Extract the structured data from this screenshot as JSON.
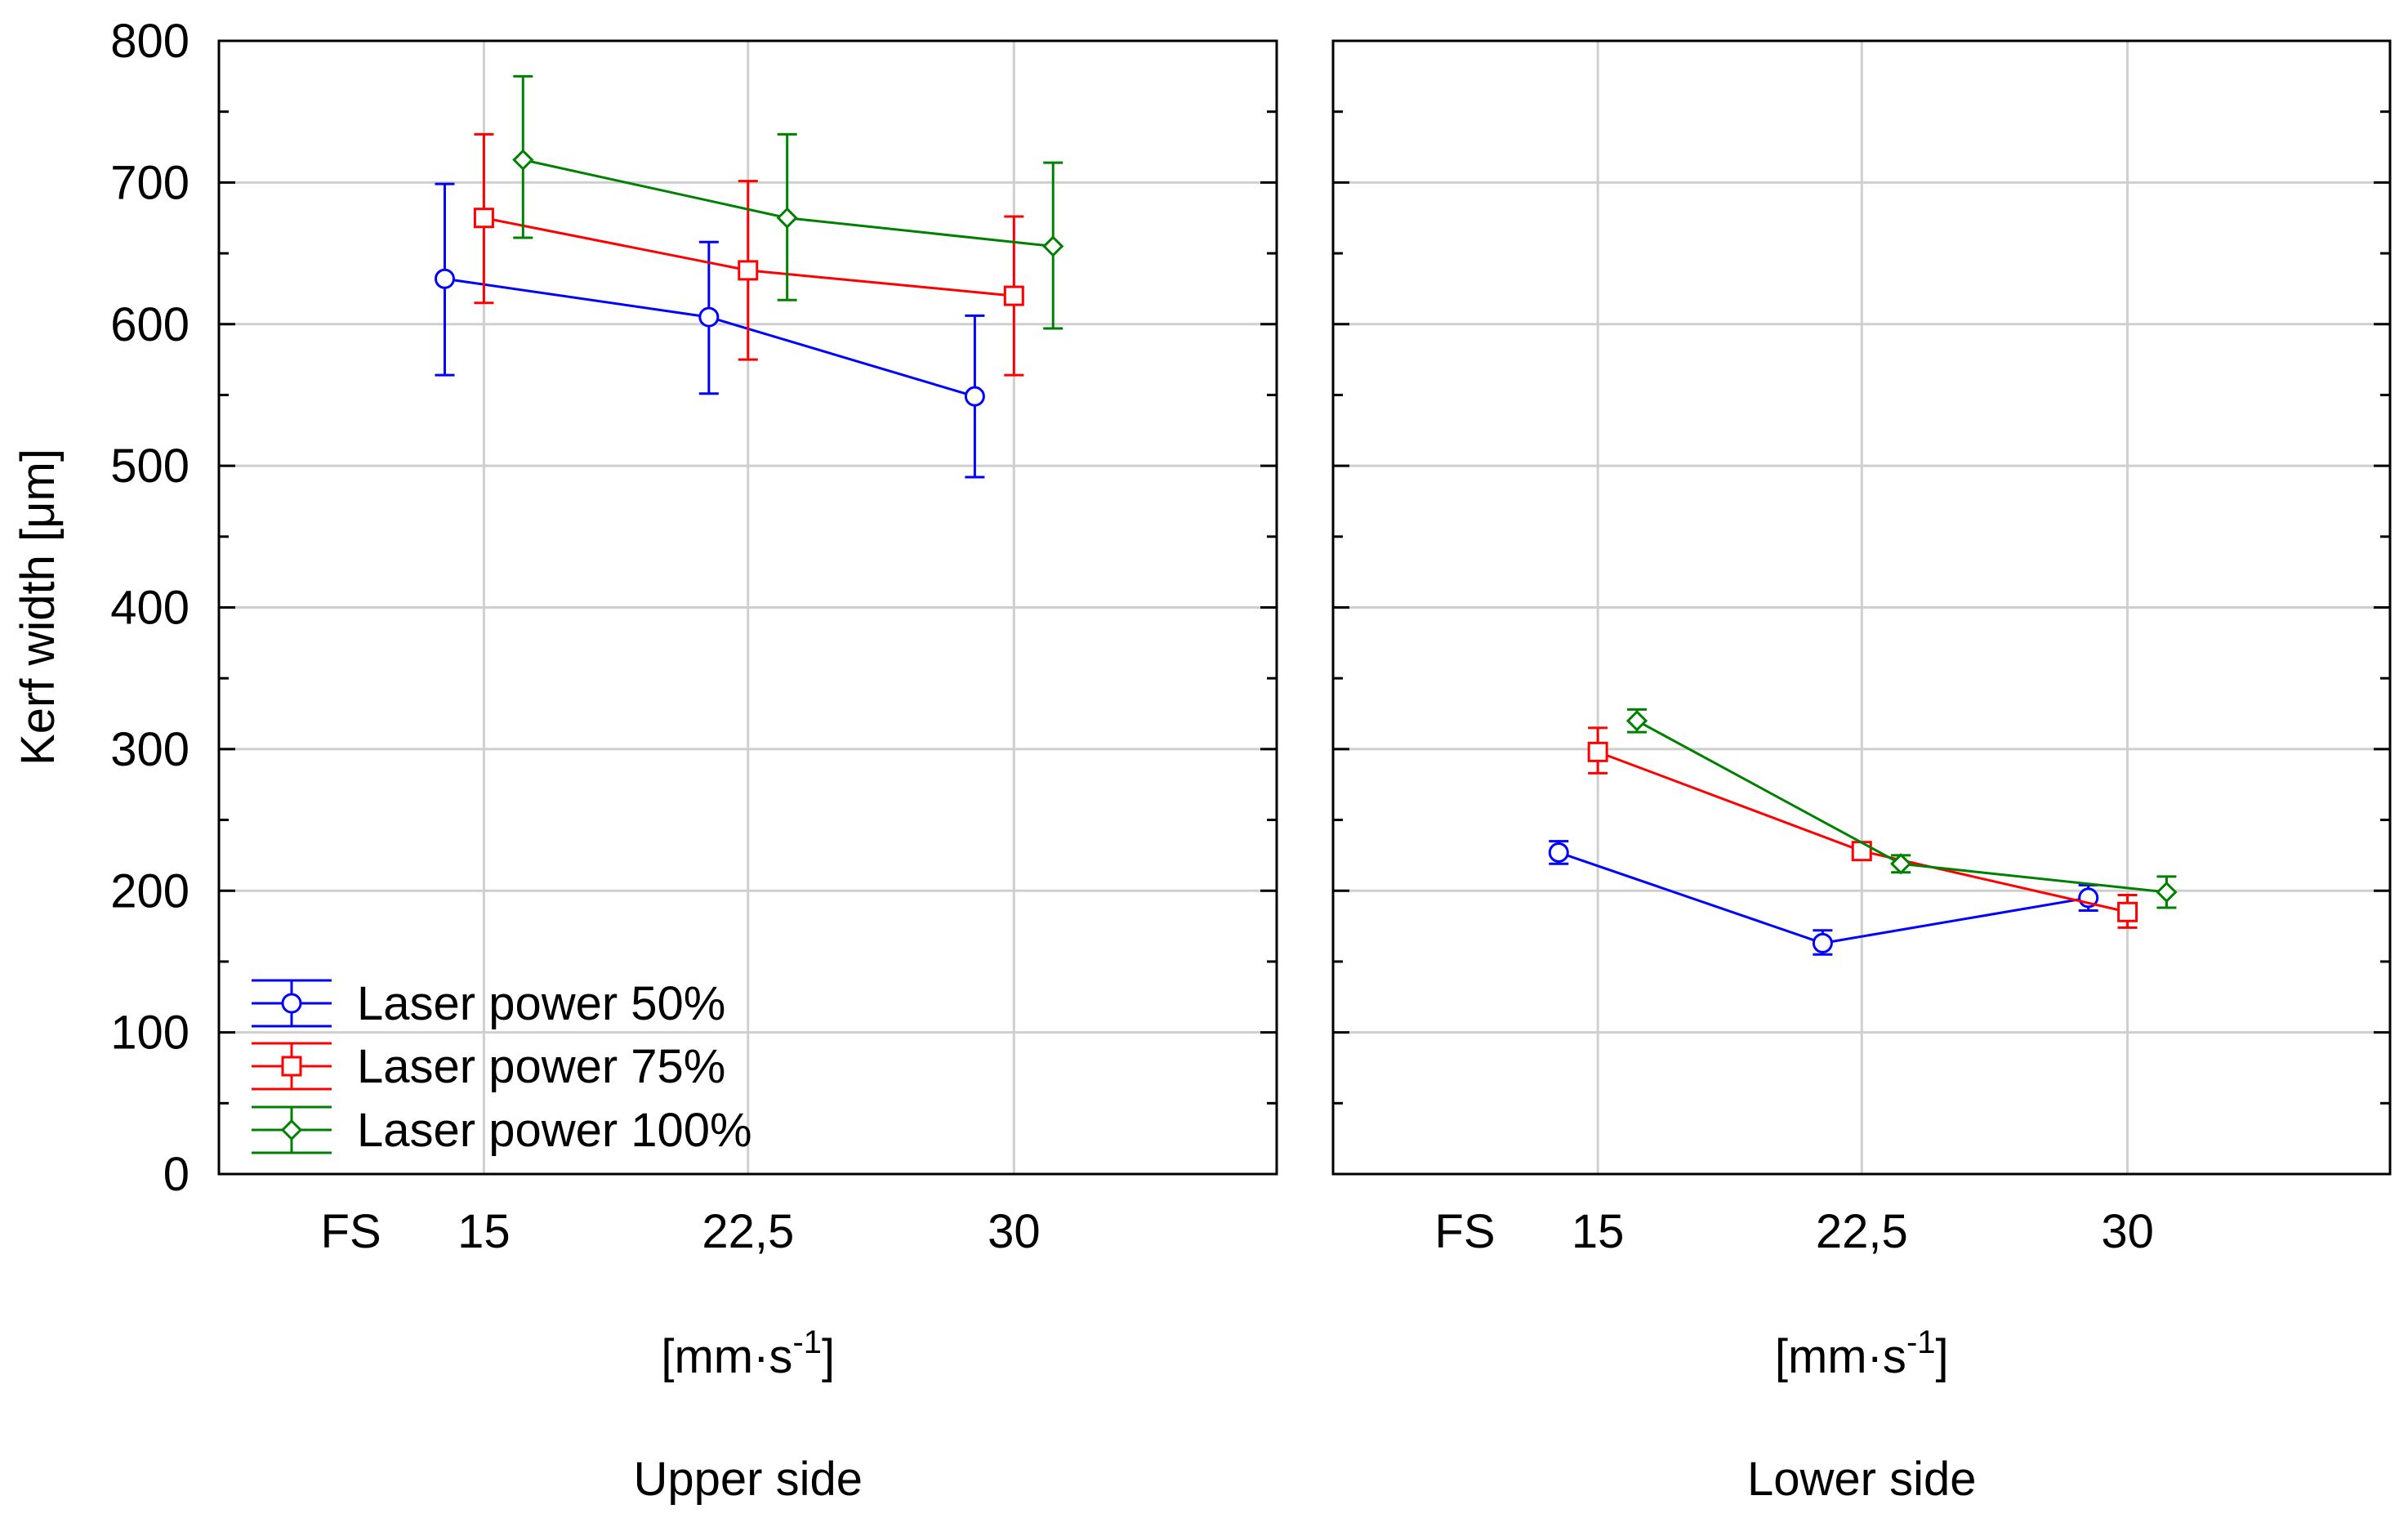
{
  "chart_data": {
    "type": "line",
    "ylabel": "Kerf width [μm]",
    "ylim": [
      0,
      800
    ],
    "yticks": [
      0,
      100,
      200,
      300,
      400,
      500,
      600,
      700,
      800
    ],
    "grid": true,
    "x_positions": [
      15,
      22.5,
      30
    ],
    "x_categories": [
      "FS",
      "15",
      "22,5",
      "30"
    ],
    "unit_label": {
      "base": "[mm·s",
      "sup": "-1",
      "end": "]"
    },
    "legend_position": "bottom-left",
    "colors": {
      "Laser power 50%": "#0000ff",
      "Laser power 75%": "#ff0000",
      "Laser power 100%": "#008000"
    },
    "markers": {
      "Laser power 50%": "circle",
      "Laser power 75%": "square",
      "Laser power 100%": "diamond"
    },
    "panels": [
      {
        "title": "Upper side",
        "series": [
          {
            "name": "Laser power 50%",
            "values": [
              632,
              605,
              549
            ],
            "err_low": [
              564,
              551,
              492
            ],
            "err_high": [
              699,
              658,
              606
            ]
          },
          {
            "name": "Laser power 75%",
            "values": [
              675,
              638,
              620
            ],
            "err_low": [
              615,
              575,
              564
            ],
            "err_high": [
              734,
              701,
              676
            ]
          },
          {
            "name": "Laser power 100%",
            "values": [
              716,
              675,
              655
            ],
            "err_low": [
              661,
              617,
              597
            ],
            "err_high": [
              775,
              734,
              714
            ]
          }
        ]
      },
      {
        "title": "Lower side",
        "series": [
          {
            "name": "Laser power 50%",
            "values": [
              227,
              163,
              195
            ],
            "err_low": [
              219,
              155,
              186
            ],
            "err_high": [
              235,
              172,
              204
            ]
          },
          {
            "name": "Laser power 75%",
            "values": [
              298,
              228,
              185
            ],
            "err_low": [
              283,
              222,
              174
            ],
            "err_high": [
              315,
              234,
              197
            ]
          },
          {
            "name": "Laser power 100%",
            "values": [
              320,
              219,
              199
            ],
            "err_low": [
              312,
              213,
              188
            ],
            "err_high": [
              328,
              225,
              210
            ]
          }
        ]
      }
    ]
  }
}
